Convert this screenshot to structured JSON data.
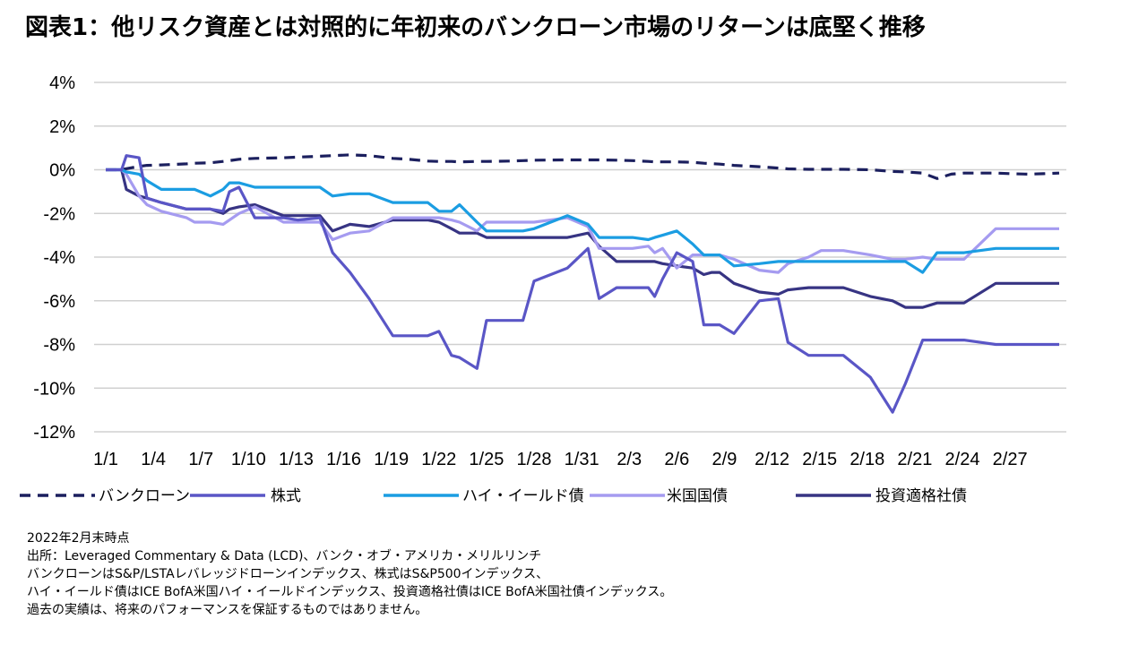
{
  "title": "図表1：他リスク資産とは対照的に年初来のバンクローン市場のリターンは底堅く推移",
  "notes": {
    "as_of": "2022年2月末時点",
    "source": "出所：Leveraged Commentary & Data (LCD)、バンク・オブ・アメリカ・メリルリンチ",
    "line3": "バンクローンはS&P/LSTAレバレッジドローンインデックス、株式はS&P500インデックス、",
    "line4": "ハイ・イールド債はICE BofA米国ハイ・イールドインデックス、投資適格社債はICE BofA米国社債インデックス。",
    "disclaimer": "過去の実績は、将来のパフォーマンスを保証するものではありません。"
  },
  "chart_data": {
    "type": "line",
    "title": "図表1：他リスク資産とは対照的に年初来のバンクローン市場のリターンは底堅く推移",
    "xlabel": "",
    "ylabel": "",
    "ylim": [
      -12,
      4
    ],
    "y_ticks": [
      4,
      2,
      0,
      -2,
      -4,
      -6,
      -8,
      -10,
      -12
    ],
    "y_tick_labels": [
      "4%",
      "2%",
      "0%",
      "-2%",
      "-4%",
      "-6%",
      "-8%",
      "-10%",
      "-12%"
    ],
    "x_tick_labels": [
      "1/1",
      "1/4",
      "1/7",
      "1/10",
      "1/13",
      "1/16",
      "1/19",
      "1/22",
      "1/25",
      "1/28",
      "1/31",
      "2/3",
      "2/6",
      "2/9",
      "2/12",
      "2/15",
      "2/18",
      "2/21",
      "2/24",
      "2/27"
    ],
    "grid": true,
    "legend_position": "bottom",
    "colors": {
      "bank_loan": "#1b1f5e",
      "equity": "#5a56c6",
      "high_yield": "#1b9de2",
      "treasury": "#a59bf0",
      "investment_grade": "#373483"
    },
    "x": [
      0,
      1,
      1.3,
      2.1,
      2.6,
      3.5,
      5.1,
      5.6,
      6.6,
      7.4,
      7.8,
      8.4,
      9.4,
      11.2,
      12.1,
      13.5,
      14.3,
      15.4,
      16.6,
      18.1,
      19.1,
      20.3,
      21.0,
      21.8,
      22.3,
      23.4,
      24.0,
      25.4,
      26.3,
      27.0,
      29.1,
      30.4,
      31.1,
      32.2,
      33.2,
      34.2,
      34.6,
      35.1,
      36.0,
      37.0,
      37.7,
      38.2,
      38.7,
      39.6,
      41.2,
      42.4,
      43.0,
      44.3,
      45.1,
      46.0,
      46.5,
      48.2,
      49.6,
      50.4,
      51.5,
      52.4,
      53.3,
      54.1,
      56.1,
      57.1,
      58.1,
      59.1,
      60.1
    ],
    "series": [
      {
        "name": "バンクローン",
        "key": "bank_loan",
        "dash": true,
        "values": [
          0,
          0,
          0.05,
          0.15,
          0.2,
          0.22,
          0.27,
          0.3,
          0.32,
          0.38,
          0.42,
          0.48,
          0.52,
          0.55,
          0.58,
          0.62,
          0.65,
          0.68,
          0.65,
          0.52,
          0.48,
          0.4,
          0.38,
          0.38,
          0.36,
          0.38,
          0.38,
          0.4,
          0.42,
          0.44,
          0.45,
          0.45,
          0.45,
          0.44,
          0.42,
          0.38,
          0.36,
          0.36,
          0.36,
          0.34,
          0.3,
          0.28,
          0.26,
          0.2,
          0.14,
          0.08,
          0.04,
          0.02,
          0.02,
          0.02,
          0.02,
          0.0,
          -0.08,
          -0.1,
          -0.15,
          -0.4,
          -0.2,
          -0.15,
          -0.15,
          -0.18,
          -0.2,
          -0.18,
          -0.15
        ]
      },
      {
        "name": "株式",
        "key": "equity",
        "dash": false,
        "values": [
          0,
          0,
          0.65,
          0.55,
          -1.3,
          -1.5,
          -1.8,
          -1.8,
          -1.8,
          -1.9,
          -1.0,
          -0.8,
          -2.2,
          -2.2,
          -2.3,
          -2.2,
          -3.8,
          -4.7,
          -5.9,
          -7.6,
          -7.6,
          -7.6,
          -7.4,
          -8.5,
          -8.6,
          -9.1,
          -6.9,
          -6.9,
          -6.9,
          -5.1,
          -4.5,
          -3.6,
          -5.9,
          -5.4,
          -5.4,
          -5.4,
          -5.8,
          -5.0,
          -3.8,
          -4.2,
          -7.1,
          -7.1,
          -7.1,
          -7.5,
          -6.0,
          -5.9,
          -7.9,
          -8.5,
          -8.5,
          -8.5,
          -8.5,
          -9.5,
          -11.1,
          -9.8,
          -7.8,
          -7.8,
          -7.8,
          -7.8,
          -8.0,
          -8.0,
          -8.0,
          -8.0,
          -8.0
        ]
      },
      {
        "name": "ハイ・イールド債",
        "key": "high_yield",
        "dash": false,
        "values": [
          0,
          0,
          -0.1,
          -0.2,
          -0.5,
          -0.9,
          -0.9,
          -0.9,
          -1.2,
          -0.9,
          -0.6,
          -0.6,
          -0.8,
          -0.8,
          -0.8,
          -0.8,
          -1.2,
          -1.1,
          -1.1,
          -1.5,
          -1.5,
          -1.5,
          -1.9,
          -1.9,
          -1.6,
          -2.4,
          -2.8,
          -2.8,
          -2.8,
          -2.7,
          -2.1,
          -2.5,
          -3.1,
          -3.1,
          -3.1,
          -3.2,
          -3.1,
          -3.0,
          -2.8,
          -3.4,
          -3.9,
          -3.9,
          -3.9,
          -4.4,
          -4.3,
          -4.2,
          -4.2,
          -4.2,
          -4.2,
          -4.2,
          -4.2,
          -4.2,
          -4.2,
          -4.2,
          -4.7,
          -3.8,
          -3.8,
          -3.8,
          -3.6,
          -3.6,
          -3.6,
          -3.6,
          -3.6
        ]
      },
      {
        "name": "米国国債",
        "key": "treasury",
        "dash": false,
        "values": [
          0,
          0,
          -0.2,
          -1.2,
          -1.6,
          -1.9,
          -2.2,
          -2.4,
          -2.4,
          -2.5,
          -2.3,
          -2.0,
          -1.7,
          -2.4,
          -2.4,
          -2.4,
          -3.2,
          -2.9,
          -2.8,
          -2.2,
          -2.2,
          -2.2,
          -2.2,
          -2.3,
          -2.4,
          -2.8,
          -2.4,
          -2.4,
          -2.4,
          -2.4,
          -2.2,
          -2.6,
          -3.6,
          -3.6,
          -3.6,
          -3.5,
          -3.8,
          -3.6,
          -4.5,
          -3.9,
          -3.9,
          -3.9,
          -3.9,
          -4.1,
          -4.6,
          -4.7,
          -4.3,
          -4.0,
          -3.7,
          -3.7,
          -3.7,
          -3.9,
          -4.1,
          -4.1,
          -4.0,
          -4.1,
          -4.1,
          -4.1,
          -2.7,
          -2.7,
          -2.7,
          -2.7,
          -2.7
        ]
      },
      {
        "name": "投資適格社債",
        "key": "investment_grade",
        "dash": false,
        "values": [
          0,
          0,
          -0.9,
          -1.2,
          -1.3,
          -1.5,
          -1.8,
          -1.8,
          -1.8,
          -2.0,
          -1.8,
          -1.7,
          -1.6,
          -2.1,
          -2.1,
          -2.1,
          -2.8,
          -2.5,
          -2.6,
          -2.3,
          -2.3,
          -2.3,
          -2.4,
          -2.7,
          -2.9,
          -2.9,
          -3.1,
          -3.1,
          -3.1,
          -3.1,
          -3.1,
          -2.9,
          -3.5,
          -4.2,
          -4.2,
          -4.2,
          -4.2,
          -4.3,
          -4.4,
          -4.5,
          -4.8,
          -4.7,
          -4.7,
          -5.2,
          -5.6,
          -5.7,
          -5.5,
          -5.4,
          -5.4,
          -5.4,
          -5.4,
          -5.8,
          -6.0,
          -6.3,
          -6.3,
          -6.1,
          -6.1,
          -6.1,
          -5.2,
          -5.2,
          -5.2,
          -5.2,
          -5.2
        ]
      }
    ]
  }
}
